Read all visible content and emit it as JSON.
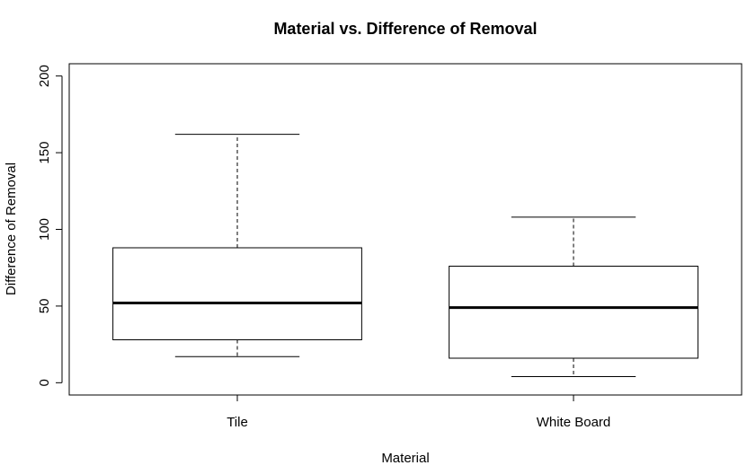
{
  "chart_data": {
    "type": "boxplot",
    "title": "Material vs. Difference of Removal",
    "xlabel": "Material",
    "ylabel": "Difference of Removal",
    "ylim": [
      -8,
      208
    ],
    "yticks": [
      0,
      50,
      100,
      150,
      200
    ],
    "grid": false,
    "legend": "none",
    "categories": [
      "Tile",
      "White Board"
    ],
    "boxes": [
      {
        "category": "Tile",
        "whisker_low": 17,
        "q1": 28,
        "median": 52,
        "q3": 88,
        "whisker_high": 162
      },
      {
        "category": "White Board",
        "whisker_low": 4,
        "q1": 16,
        "median": 49,
        "q3": 76,
        "whisker_high": 108
      }
    ]
  }
}
